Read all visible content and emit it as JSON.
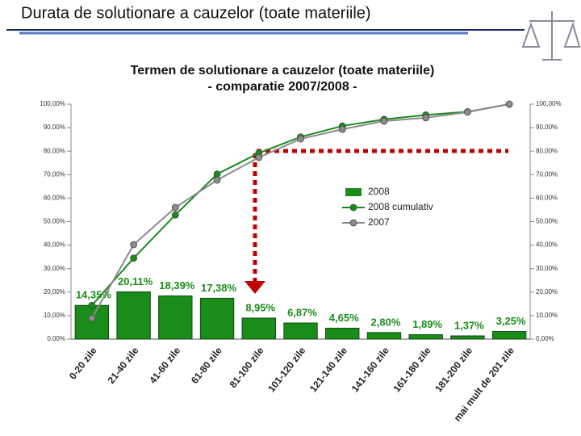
{
  "slide_title": "Durata de solutionare a cauzelor (toate materiile)",
  "chart_data": {
    "type": "bar",
    "title": [
      "Termen de solutionare a cauzelor (toate materiile)",
      "- comparatie 2007/2008 -"
    ],
    "categories": [
      "0-20 zile",
      "21-40 zile",
      "41-60 zile",
      "61-80 zile",
      "81-100 zile",
      "101-120 zile",
      "121-140 zile",
      "141-160 zile",
      "161-180 zile",
      "181-200 zile",
      "mai mult de 201 zile"
    ],
    "series": [
      {
        "name": "2008",
        "type": "bar",
        "color": "#1a8c1a",
        "values": [
          14.35,
          20.11,
          18.39,
          17.38,
          8.95,
          6.87,
          4.65,
          2.8,
          1.89,
          1.37,
          3.25
        ],
        "value_labels": [
          "14,35%",
          "20,11%",
          "18,39%",
          "17,38%",
          "8,95%",
          "6,87%",
          "4,65%",
          "2,80%",
          "1,89%",
          "1,37%",
          "3,25%"
        ]
      },
      {
        "name": "2008 cumulativ",
        "type": "line",
        "color": "#1a8c1a",
        "values": [
          14.35,
          34.46,
          52.85,
          70.23,
          79.18,
          86.05,
          90.7,
          93.5,
          95.39,
          96.76,
          100
        ]
      },
      {
        "name": "2007",
        "type": "line",
        "color": "#8c8c8c",
        "values": [
          8.9,
          40.2,
          56,
          67.7,
          77.3,
          85.2,
          89.3,
          92.8,
          94.2,
          96.6,
          100
        ]
      }
    ],
    "ylim": [
      0,
      100
    ],
    "yticks": [
      {
        "value": 0,
        "label": "0,00%"
      },
      {
        "value": 10,
        "label": "10,00%"
      },
      {
        "value": 20,
        "label": "20,00%"
      },
      {
        "value": 30,
        "label": "30,00%"
      },
      {
        "value": 40,
        "label": "40,00%"
      },
      {
        "value": 50,
        "label": "50,00%"
      },
      {
        "value": 60,
        "label": "60,00%"
      },
      {
        "value": 70,
        "label": "70,00%"
      },
      {
        "value": 80,
        "label": "80,00%"
      },
      {
        "value": 90,
        "label": "90,00%"
      },
      {
        "value": 100,
        "label": "100,00%"
      }
    ],
    "y2lim": [
      0,
      100
    ],
    "y2ticks": [
      {
        "value": 0,
        "label": "0,00%"
      },
      {
        "value": 10,
        "label": "10,00%"
      },
      {
        "value": 20,
        "label": "20,00%"
      },
      {
        "value": 30,
        "label": "30,00%"
      },
      {
        "value": 40,
        "label": "40,00%"
      },
      {
        "value": 50,
        "label": "50,00%"
      },
      {
        "value": 60,
        "label": "60,00%"
      },
      {
        "value": 70,
        "label": "70,00%"
      },
      {
        "value": 80,
        "label": "80,00%"
      },
      {
        "value": 90,
        "label": "90,00%"
      },
      {
        "value": 100,
        "label": "100,00%"
      }
    ]
  }
}
